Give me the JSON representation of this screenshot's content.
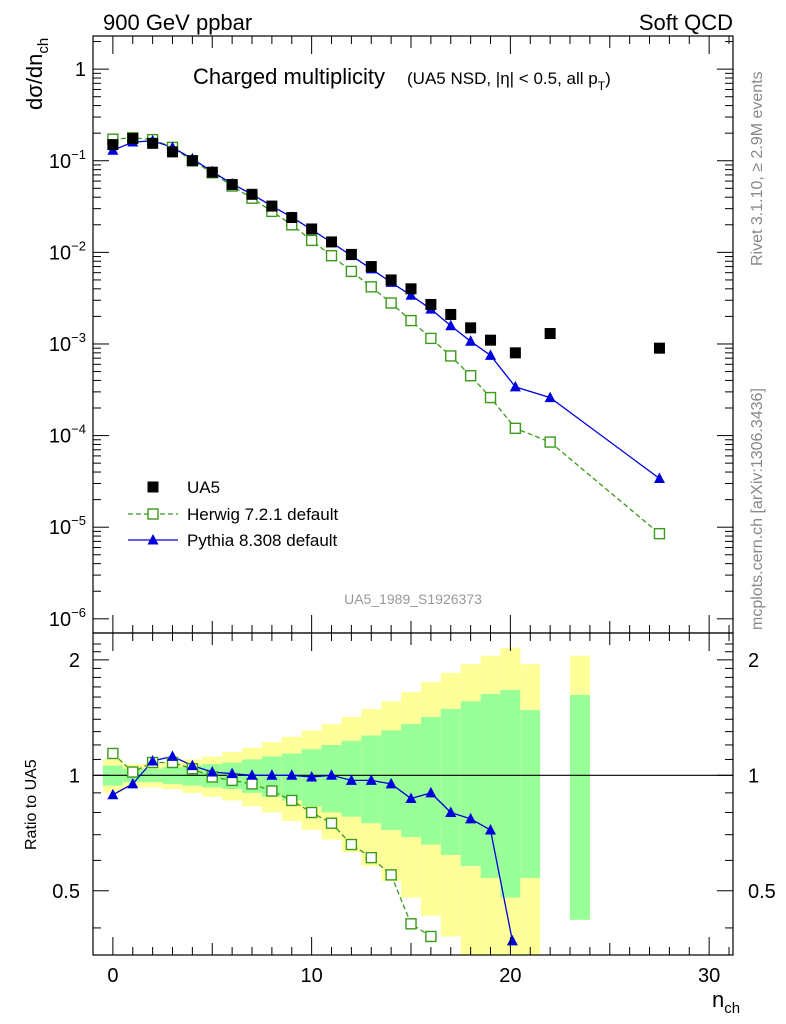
{
  "header": {
    "left": "900 GeV ppbar",
    "right": "Soft QCD"
  },
  "side_labels": {
    "rivet": "Rivet 3.1.10, ≥ 2.9M events",
    "mcplots": "mcplots.cern.ch [arXiv:1306.3436]"
  },
  "main_plot": {
    "title": "Charged multiplicity",
    "subtitle_prefix": "(UA5 NSD, |η| < 0.5, all p",
    "subtitle_sub": "T",
    "subtitle_suffix": ")",
    "ylabel_main": "dσ/dn",
    "ylabel_sub": "ch",
    "watermark": "UA5_1989_S1926373",
    "yticks": [
      {
        "label": "1",
        "sup": ""
      },
      {
        "label": "10",
        "sup": "−1"
      },
      {
        "label": "10",
        "sup": "−2"
      },
      {
        "label": "10",
        "sup": "−3"
      },
      {
        "label": "10",
        "sup": "−4"
      },
      {
        "label": "10",
        "sup": "−5"
      },
      {
        "label": "10",
        "sup": "−6"
      }
    ]
  },
  "ratio_plot": {
    "ylabel": "Ratio to UA5",
    "yticks": [
      "2",
      "1",
      "0.5"
    ],
    "xticks": [
      "0",
      "10",
      "20",
      "30"
    ],
    "xlabel_main": "n",
    "xlabel_sub": "ch"
  },
  "legend": [
    {
      "label": "UA5",
      "key": "ua5"
    },
    {
      "label": "Herwig 7.2.1 default",
      "key": "herwig"
    },
    {
      "label": "Pythia 8.308 default",
      "key": "pythia"
    }
  ],
  "colors": {
    "ua5": "#000000",
    "herwig": "#3a9a1a",
    "pythia": "#0000dd",
    "band_outer": "#ffff99",
    "band_inner": "#99ff99"
  },
  "chart_data": [
    {
      "type": "scatter",
      "yscale": "log",
      "xlim": [
        -1,
        31.2
      ],
      "ylim": [
        7e-07,
        2.3
      ],
      "series": [
        {
          "name": "UA5",
          "x": [
            0,
            1,
            2,
            3,
            4,
            5,
            6,
            7,
            8,
            9,
            10,
            11,
            12,
            13,
            14,
            15,
            16,
            17,
            18,
            19,
            20.25,
            22,
            27.5
          ],
          "values": [
            0.15,
            0.175,
            0.155,
            0.125,
            0.1,
            0.075,
            0.055,
            0.043,
            0.032,
            0.024,
            0.018,
            0.013,
            0.0095,
            0.007,
            0.005,
            0.004,
            0.0027,
            0.0021,
            0.0015,
            0.0011,
            0.0008,
            0.0013,
            0.0009
          ]
        },
        {
          "name": "Herwig 7.2.1 default",
          "x": [
            0,
            1,
            2,
            3,
            4,
            5,
            6,
            7,
            8,
            9,
            10,
            11,
            12,
            13,
            14,
            15,
            16,
            17,
            18,
            19,
            20.25,
            22,
            27.5
          ],
          "values": [
            0.172,
            0.178,
            0.17,
            0.14,
            0.1,
            0.074,
            0.053,
            0.039,
            0.028,
            0.02,
            0.0135,
            0.0092,
            0.0062,
            0.0042,
            0.0028,
            0.0018,
            0.00115,
            0.00074,
            0.00045,
            0.00026,
            0.00012,
            8.5e-05,
            8.5e-06
          ]
        },
        {
          "name": "Pythia 8.308 default",
          "x": [
            0,
            1,
            2,
            3,
            4,
            5,
            6,
            7,
            8,
            9,
            10,
            11,
            12,
            13,
            14,
            15,
            16,
            17,
            18,
            19,
            20.25,
            22,
            27.5
          ],
          "values": [
            0.13,
            0.16,
            0.165,
            0.14,
            0.105,
            0.076,
            0.056,
            0.043,
            0.032,
            0.0242,
            0.0177,
            0.0128,
            0.0092,
            0.0066,
            0.0047,
            0.0034,
            0.0024,
            0.00158,
            0.00107,
            0.00075,
            0.00034,
            0.00026,
            3.4e-05
          ]
        }
      ]
    },
    {
      "type": "line",
      "yscale": "log",
      "xlim": [
        -1,
        31.2
      ],
      "ylim": [
        0.34,
        2.35
      ],
      "reference_line": 1,
      "bands": {
        "edges": [
          -0.5,
          0.5,
          1.5,
          2.5,
          3.5,
          4.5,
          5.5,
          6.5,
          7.5,
          8.5,
          9.5,
          10.5,
          11.5,
          12.5,
          13.5,
          14.5,
          15.5,
          16.5,
          17.5,
          18.5,
          19.5,
          20.5,
          21.5,
          23,
          24,
          31
        ],
        "outer_low": [
          0.9,
          0.93,
          0.93,
          0.92,
          0.9,
          0.88,
          0.86,
          0.83,
          0.8,
          0.76,
          0.72,
          0.68,
          0.63,
          0.58,
          0.53,
          0.48,
          0.43,
          0.38,
          0.33,
          0.3,
          0.28,
          0.3,
          null,
          0.42
        ],
        "outer_high": [
          1.1,
          1.07,
          1.07,
          1.08,
          1.1,
          1.12,
          1.15,
          1.18,
          1.22,
          1.26,
          1.31,
          1.36,
          1.42,
          1.49,
          1.56,
          1.65,
          1.75,
          1.85,
          1.95,
          2.05,
          2.15,
          1.95,
          null,
          2.05
        ],
        "inner_low": [
          0.94,
          0.96,
          0.96,
          0.95,
          0.94,
          0.93,
          0.92,
          0.9,
          0.88,
          0.86,
          0.83,
          0.8,
          0.78,
          0.75,
          0.72,
          0.69,
          0.66,
          0.62,
          0.58,
          0.54,
          0.48,
          0.54,
          null,
          0.42
        ],
        "inner_high": [
          1.06,
          1.04,
          1.04,
          1.05,
          1.06,
          1.07,
          1.08,
          1.1,
          1.12,
          1.14,
          1.17,
          1.2,
          1.23,
          1.27,
          1.31,
          1.36,
          1.42,
          1.49,
          1.56,
          1.63,
          1.67,
          1.48,
          null,
          1.62
        ]
      },
      "series": [
        {
          "name": "Herwig 7.2.1 default",
          "x": [
            0,
            1,
            2,
            3,
            4,
            5,
            6,
            7,
            8,
            9,
            10,
            11,
            12,
            13,
            14,
            15,
            16
          ],
          "values": [
            1.14,
            1.02,
            1.08,
            1.08,
            1.04,
            0.99,
            0.97,
            0.95,
            0.91,
            0.86,
            0.8,
            0.75,
            0.66,
            0.61,
            0.55,
            0.41,
            0.38
          ]
        },
        {
          "name": "Pythia 8.308 default",
          "x": [
            0,
            1,
            2,
            3,
            4,
            5,
            6,
            7,
            8,
            9,
            10,
            11,
            12,
            13,
            14,
            15,
            16,
            17,
            18,
            19,
            20.1
          ],
          "values": [
            0.89,
            0.95,
            1.09,
            1.12,
            1.06,
            1.02,
            1.01,
            1.0,
            1.0,
            1.0,
            0.99,
            1.0,
            0.97,
            0.97,
            0.95,
            0.87,
            0.9,
            0.8,
            0.77,
            0.72,
            0.37
          ]
        }
      ]
    }
  ]
}
